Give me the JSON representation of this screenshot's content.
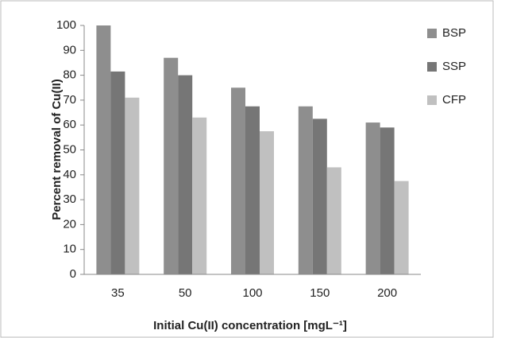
{
  "chart_data": {
    "type": "bar",
    "categories": [
      "35",
      "50",
      "100",
      "150",
      "200"
    ],
    "series": [
      {
        "name": "BSP",
        "color": "#8e8e8e",
        "values": [
          100,
          87,
          75,
          67.5,
          61
        ]
      },
      {
        "name": "SSP",
        "color": "#767676",
        "values": [
          81.5,
          80,
          67.5,
          62.5,
          59
        ]
      },
      {
        "name": "CFP",
        "color": "#c0c0c0",
        "values": [
          71,
          63,
          57.5,
          43,
          37.5
        ]
      }
    ],
    "ylim": [
      0,
      100
    ],
    "yticks": [
      0,
      10,
      20,
      30,
      40,
      50,
      60,
      70,
      80,
      90,
      100
    ],
    "y_label": "Percent removal of Cu(II)",
    "x_label": "Initial Cu(II) concentration [mgL⁻¹]",
    "legend": "right"
  }
}
